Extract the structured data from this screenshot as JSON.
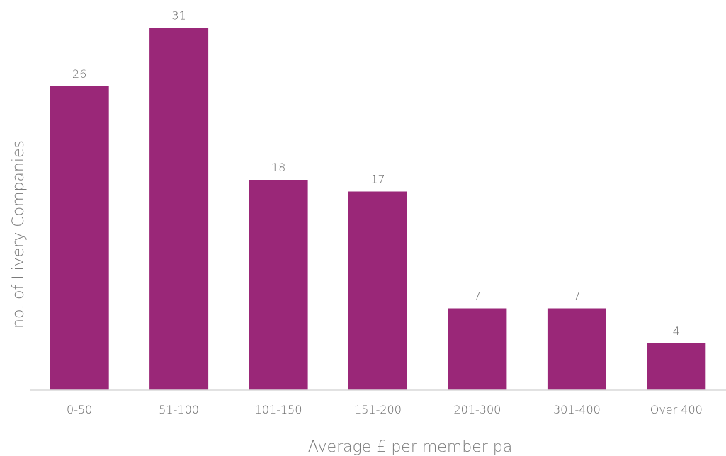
{
  "chart_data": {
    "type": "bar",
    "categories": [
      "0-50",
      "51-100",
      "101-150",
      "151-200",
      "201-300",
      "301-400",
      "Over 400"
    ],
    "values": [
      26,
      31,
      18,
      17,
      7,
      7,
      4
    ],
    "xlabel": "Average £ per member pa",
    "ylabel": "no. of Livery Companies",
    "ylim": [
      0,
      33
    ],
    "grid": false,
    "data_labels": true,
    "bar_color": "#9a2778",
    "text_color": "#6a6a6a",
    "axis_color": "#d9d9d9"
  }
}
